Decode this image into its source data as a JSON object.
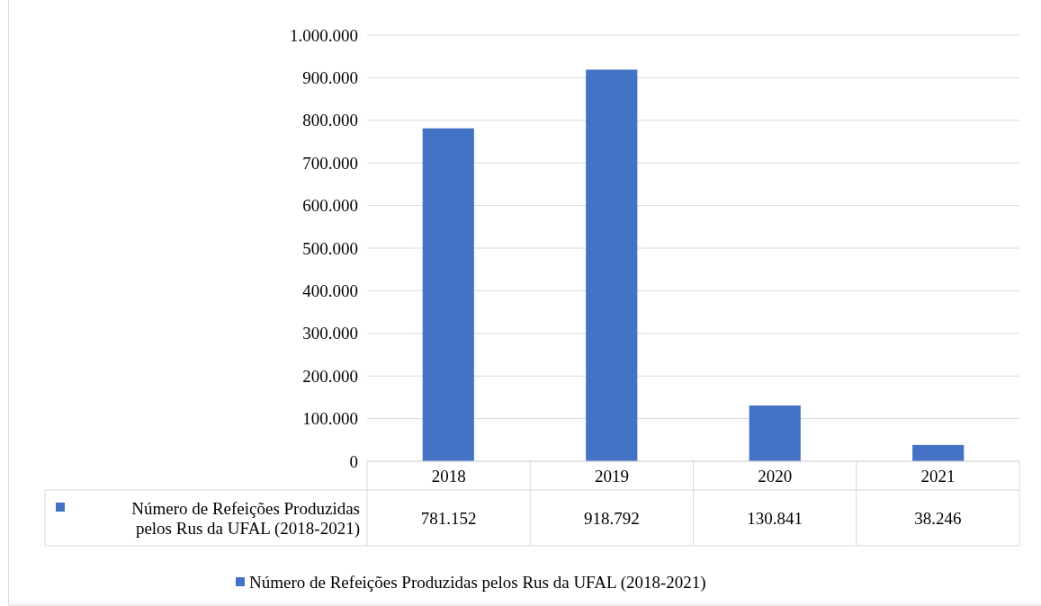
{
  "chart_data": {
    "type": "bar",
    "categories": [
      "2018",
      "2019",
      "2020",
      "2021"
    ],
    "series": [
      {
        "name": "Número de Refeições Produzidas pelos Rus da UFAL (2018-2021)",
        "color": "#4472c4",
        "values": [
          781152,
          918792,
          130841,
          38246
        ],
        "value_labels": [
          "781.152",
          "918.792",
          "130.841",
          "38.246"
        ]
      }
    ],
    "ylim": [
      0,
      1000000
    ],
    "yticks": [
      0,
      {
        "value": 100000,
        "label": "100.000"
      },
      {
        "value": 200000,
        "label": "200.000"
      },
      {
        "value": 300000,
        "label": "300.000"
      },
      {
        "value": 400000,
        "label": "400.000"
      },
      {
        "value": 500000,
        "label": "500.000"
      },
      {
        "value": 600000,
        "label": "600.000"
      },
      {
        "value": 700000,
        "label": "700.000"
      },
      {
        "value": 800000,
        "label": "800.000"
      },
      {
        "value": 900000,
        "label": "900.000"
      },
      {
        "value": 1000000,
        "label": "1.000.000"
      }
    ],
    "grid": "y",
    "legend": "bottom"
  }
}
